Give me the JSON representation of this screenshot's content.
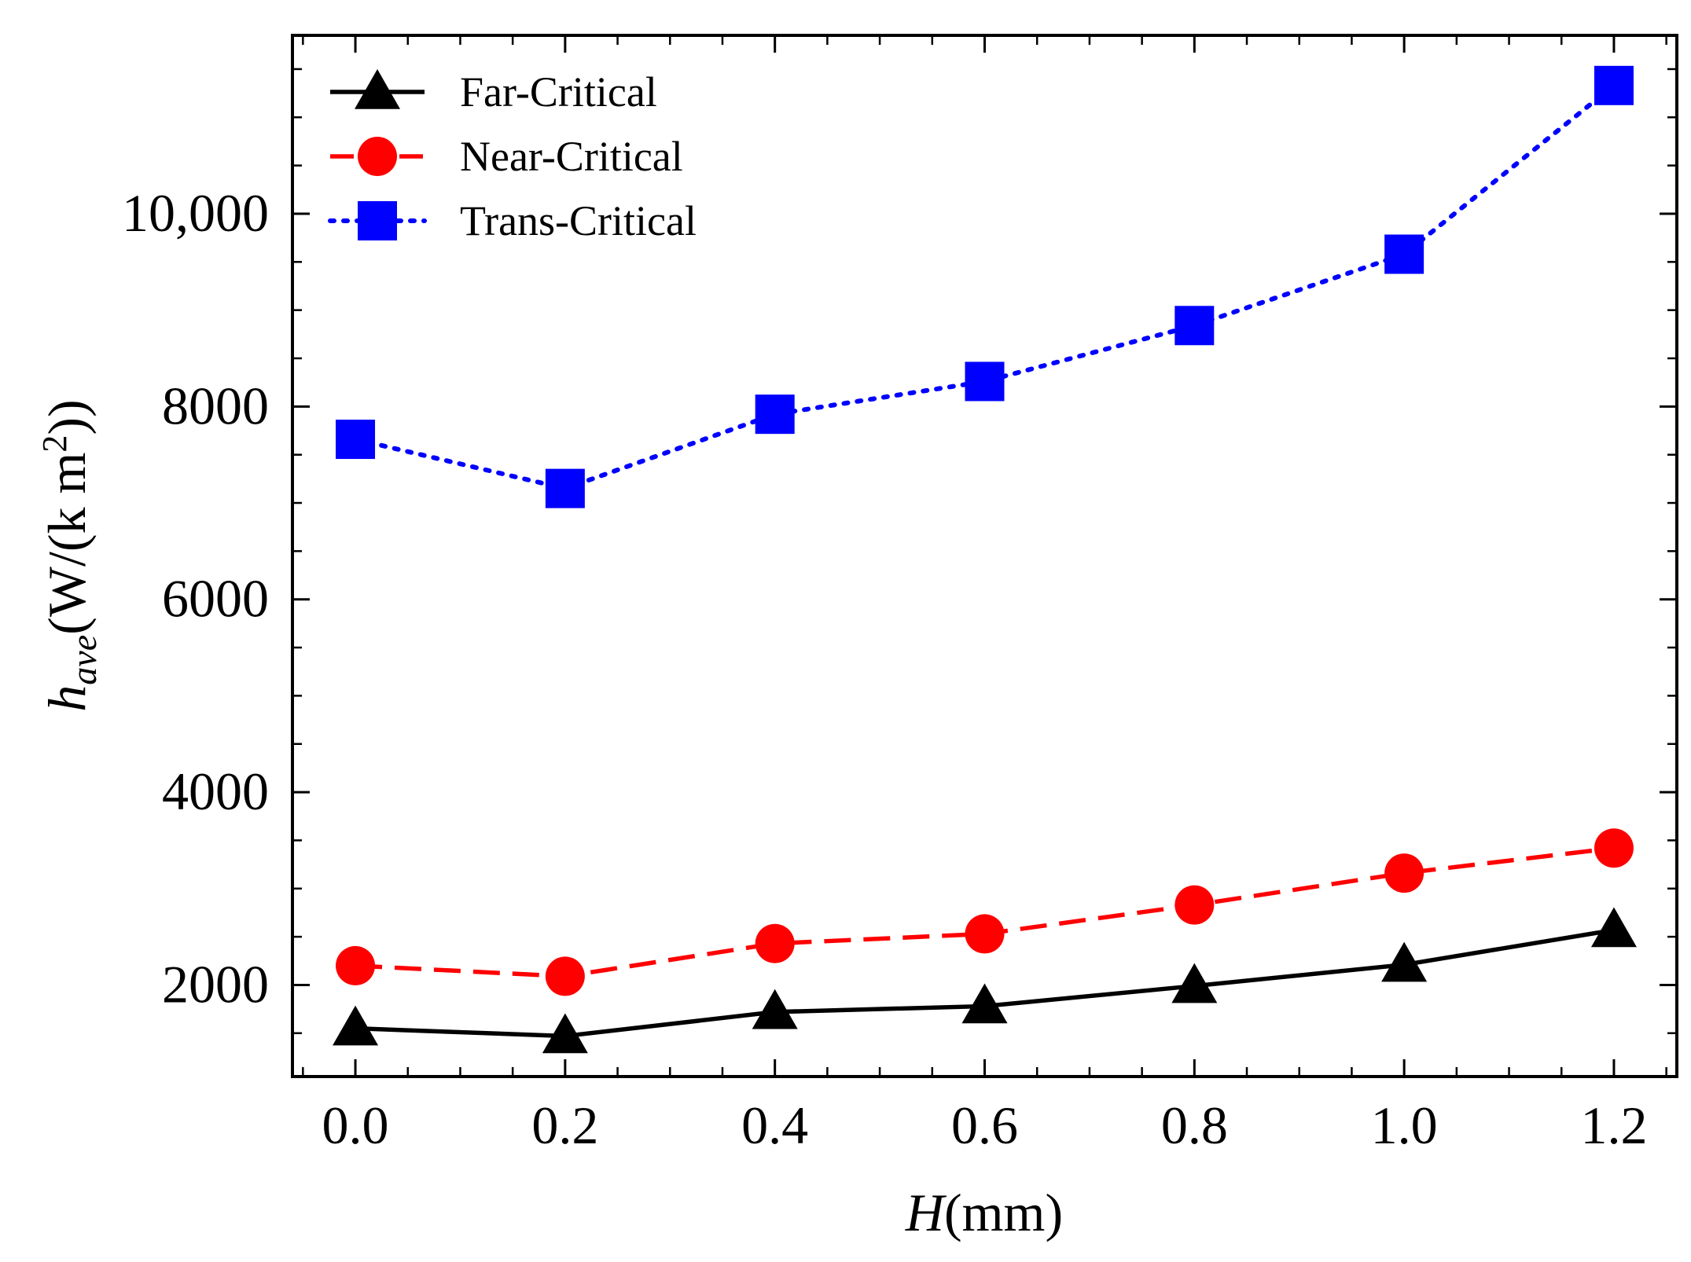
{
  "chart_data": {
    "type": "line",
    "title": "",
    "xlabel": {
      "italic": "H",
      "rest": "(mm)"
    },
    "ylabel": {
      "base": "h",
      "subscript": "ave",
      "units_prefix": "(W/(k m",
      "superscript": "2",
      "units_suffix": "))"
    },
    "xlim": [
      -0.06,
      1.26
    ],
    "ylim": [
      1050,
      11850
    ],
    "x": [
      0.0,
      0.2,
      0.4,
      0.6,
      0.8,
      1.0,
      1.2
    ],
    "x_tick_labels": [
      "0.0",
      "0.2",
      "0.4",
      "0.6",
      "0.8",
      "1.0",
      "1.2"
    ],
    "y_ticks": [
      2000,
      4000,
      6000,
      8000,
      10000
    ],
    "y_tick_labels": [
      "2000",
      "4000",
      "6000",
      "8000",
      "10,000"
    ],
    "legend_position": "top-left",
    "grid": false,
    "series": [
      {
        "name": "Far-Critical",
        "values": [
          1550,
          1470,
          1720,
          1780,
          1990,
          2210,
          2570
        ],
        "color": "#000000",
        "marker": "triangle",
        "linestyle": "solid"
      },
      {
        "name": "Near-Critical",
        "values": [
          2200,
          2090,
          2430,
          2530,
          2830,
          3160,
          3420
        ],
        "color": "#ff0000",
        "marker": "circle",
        "linestyle": "dashed"
      },
      {
        "name": "Trans-Critical",
        "values": [
          7660,
          7150,
          7920,
          8260,
          8840,
          9580,
          11330
        ],
        "color": "#0000ff",
        "marker": "square",
        "linestyle": "dotted"
      }
    ]
  }
}
